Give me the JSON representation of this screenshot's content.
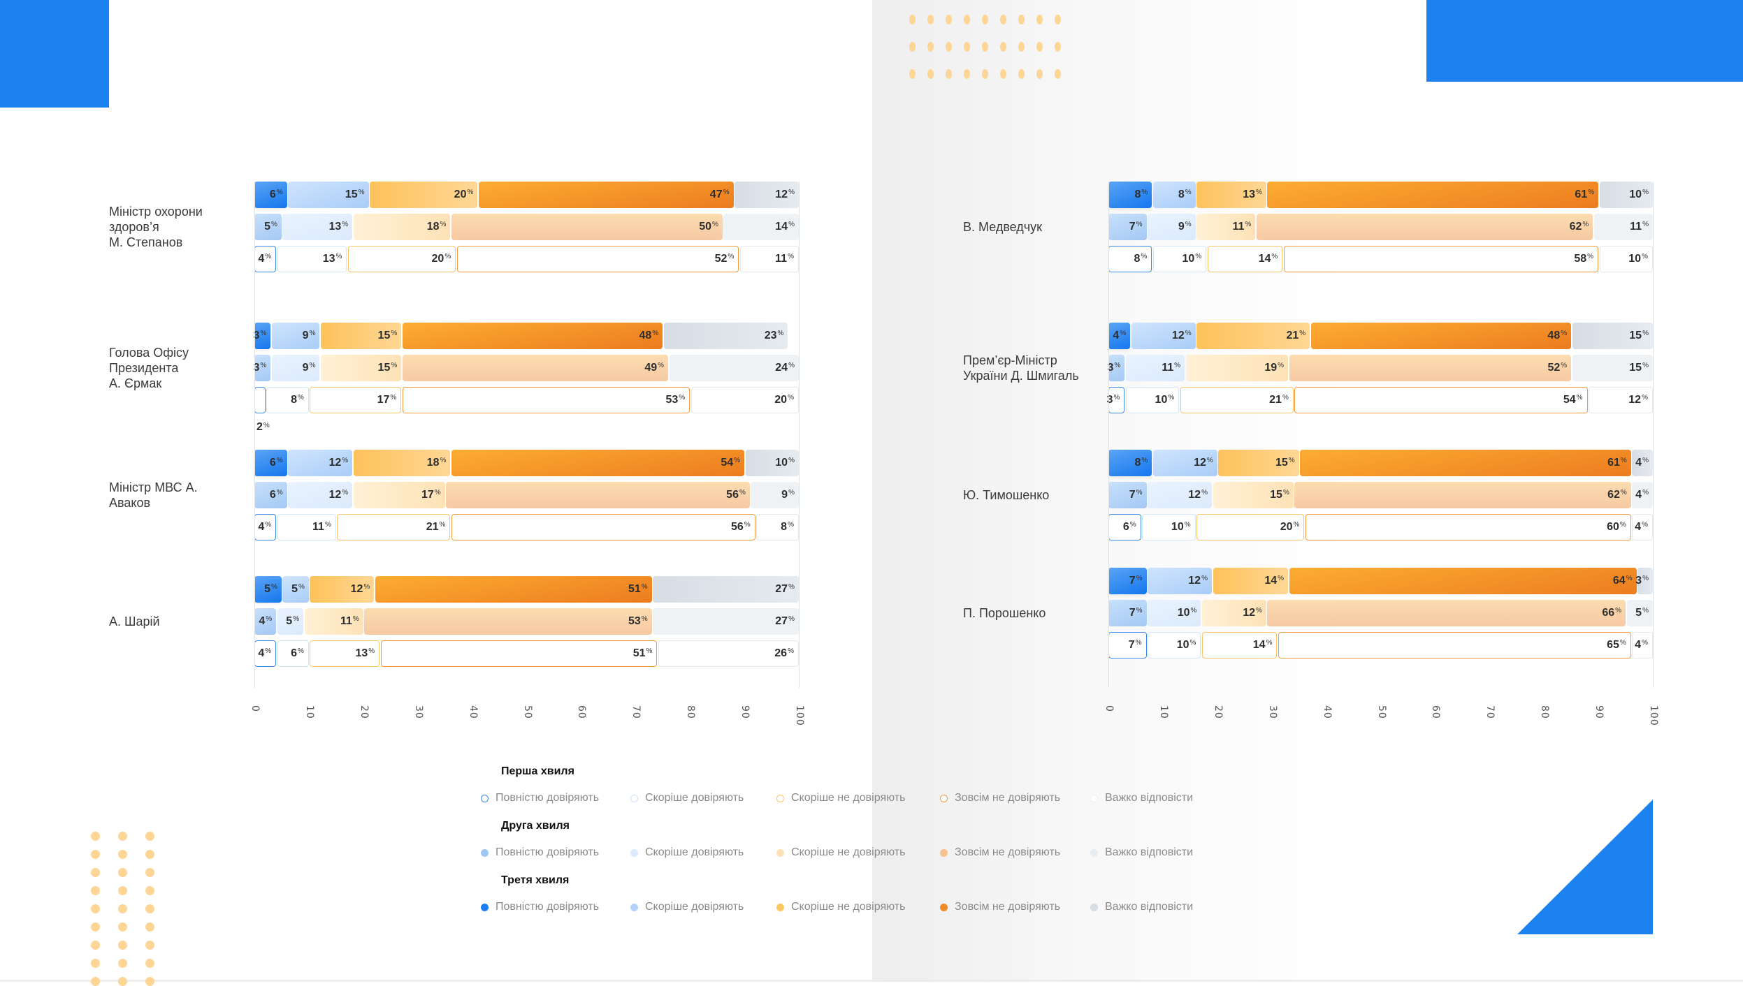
{
  "colors": {
    "brand_blue": "#1c82ef",
    "dot_yellow": "#fdd594",
    "categories": [
      "#1577ee",
      "#a9cdf8",
      "#fdc25a",
      "#ec7c1f",
      "#d6dde4"
    ]
  },
  "chart_data": {
    "type": "bar",
    "orientation": "horizontal-stacked",
    "title": "",
    "xlabel": "",
    "ylabel": "",
    "xlim": [
      0,
      100
    ],
    "x_ticks": [
      "0",
      "10",
      "20",
      "30",
      "40",
      "50",
      "60",
      "70",
      "80",
      "90",
      "100"
    ],
    "value_suffix": "%",
    "categories_legend": [
      "Повністю довіряють",
      "Скоріше довіряють",
      "Скоріше не довіряють",
      "Зовсім не довіряють",
      "Важко відповісти"
    ],
    "waves": [
      "Третя хвиля",
      "Друга хвиля",
      "Перша хвиля"
    ],
    "panels": [
      {
        "side": "left",
        "groups": [
          {
            "label": "Міністр охорони здоров'я М. Степанов",
            "label_lines": [
              "Міністр охорони",
              "здоров’я",
              "М. Степанов"
            ],
            "series": [
              {
                "wave": "Третя хвиля",
                "values": [
                  6,
                  15,
                  20,
                  47,
                  12
                ]
              },
              {
                "wave": "Друга хвиля",
                "values": [
                  5,
                  13,
                  18,
                  50,
                  14
                ]
              },
              {
                "wave": "Перша хвиля",
                "values": [
                  4,
                  13,
                  20,
                  52,
                  11
                ]
              }
            ]
          },
          {
            "label": "Голова Офісу Президента А. Єрмак",
            "label_lines": [
              "Голова Офісу",
              "Президента",
              "А. Єрмак"
            ],
            "series": [
              {
                "wave": "Третя хвиля",
                "values": [
                  3,
                  9,
                  15,
                  48,
                  23
                ]
              },
              {
                "wave": "Друга хвиля",
                "values": [
                  3,
                  9,
                  15,
                  49,
                  24
                ]
              },
              {
                "wave": "Перша хвиля",
                "values": [
                  2,
                  8,
                  17,
                  53,
                  20
                ]
              }
            ]
          },
          {
            "label": "Міністр МВС А. Аваков",
            "label_lines": [
              "Міністр МВС А.",
              "Аваков"
            ],
            "series": [
              {
                "wave": "Третя хвиля",
                "values": [
                  6,
                  12,
                  18,
                  54,
                  10
                ]
              },
              {
                "wave": "Друга хвиля",
                "values": [
                  6,
                  12,
                  17,
                  56,
                  9
                ]
              },
              {
                "wave": "Перша хвиля",
                "values": [
                  4,
                  11,
                  21,
                  56,
                  8
                ]
              }
            ]
          },
          {
            "label": "А. Шарій",
            "label_lines": [
              "А. Шарій"
            ],
            "series": [
              {
                "wave": "Третя хвиля",
                "values": [
                  5,
                  5,
                  12,
                  51,
                  27
                ]
              },
              {
                "wave": "Друга хвиля",
                "values": [
                  4,
                  5,
                  11,
                  53,
                  27
                ]
              },
              {
                "wave": "Перша хвиля",
                "values": [
                  4,
                  6,
                  13,
                  51,
                  26
                ]
              }
            ]
          }
        ]
      },
      {
        "side": "right",
        "groups": [
          {
            "label": "В. Медведчук",
            "label_lines": [
              "В. Медведчук"
            ],
            "series": [
              {
                "wave": "Третя хвиля",
                "values": [
                  8,
                  8,
                  13,
                  61,
                  10
                ]
              },
              {
                "wave": "Друга хвиля",
                "values": [
                  7,
                  9,
                  11,
                  62,
                  11
                ]
              },
              {
                "wave": "Перша хвиля",
                "values": [
                  8,
                  10,
                  14,
                  58,
                  10
                ]
              }
            ]
          },
          {
            "label": "Прем'єр-Міністр України Д. Шмигаль",
            "label_lines": [
              "Прем’єр-Міністр",
              "України Д. Шмигаль"
            ],
            "series": [
              {
                "wave": "Третя хвиля",
                "values": [
                  4,
                  12,
                  21,
                  48,
                  15
                ]
              },
              {
                "wave": "Друга хвиля",
                "values": [
                  3,
                  11,
                  19,
                  52,
                  15
                ]
              },
              {
                "wave": "Перша хвиля",
                "values": [
                  3,
                  10,
                  21,
                  54,
                  12
                ]
              }
            ]
          },
          {
            "label": "Ю. Тимошенко",
            "label_lines": [
              "Ю. Тимошенко"
            ],
            "series": [
              {
                "wave": "Третя хвиля",
                "values": [
                  8,
                  12,
                  15,
                  61,
                  4
                ]
              },
              {
                "wave": "Друга хвиля",
                "values": [
                  7,
                  12,
                  15,
                  62,
                  4
                ]
              },
              {
                "wave": "Перша хвиля",
                "values": [
                  6,
                  10,
                  20,
                  60,
                  4
                ]
              }
            ]
          },
          {
            "label": "П. Порошенко",
            "label_lines": [
              "П. Порошенко"
            ],
            "series": [
              {
                "wave": "Третя хвиля",
                "values": [
                  7,
                  12,
                  14,
                  64,
                  3
                ]
              },
              {
                "wave": "Друга хвиля",
                "values": [
                  7,
                  10,
                  12,
                  66,
                  5
                ]
              },
              {
                "wave": "Перша хвиля",
                "values": [
                  7,
                  10,
                  14,
                  65,
                  4
                ]
              }
            ]
          }
        ]
      }
    ]
  },
  "legend": {
    "groups": [
      {
        "heading": "Перша хвиля",
        "style": "outline",
        "items": [
          "Повністю довіряють",
          "Скоріше довіряють",
          "Скоріше не довіряють",
          "Зовсім не довіряють",
          "Важко відповісти"
        ]
      },
      {
        "heading": "Друга хвиля",
        "style": "pale",
        "items": [
          "Повністю довіряють",
          "Скоріше довіряють",
          "Скоріше не довіряють",
          "Зовсім не довіряють",
          "Важко відповісти"
        ]
      },
      {
        "heading": "Третя хвиля",
        "style": "solid",
        "items": [
          "Повністю довіряють",
          "Скоріше довіряють",
          "Скоріше не довіряють",
          "Зовсім не довіряють",
          "Важко відповісти"
        ]
      }
    ]
  }
}
